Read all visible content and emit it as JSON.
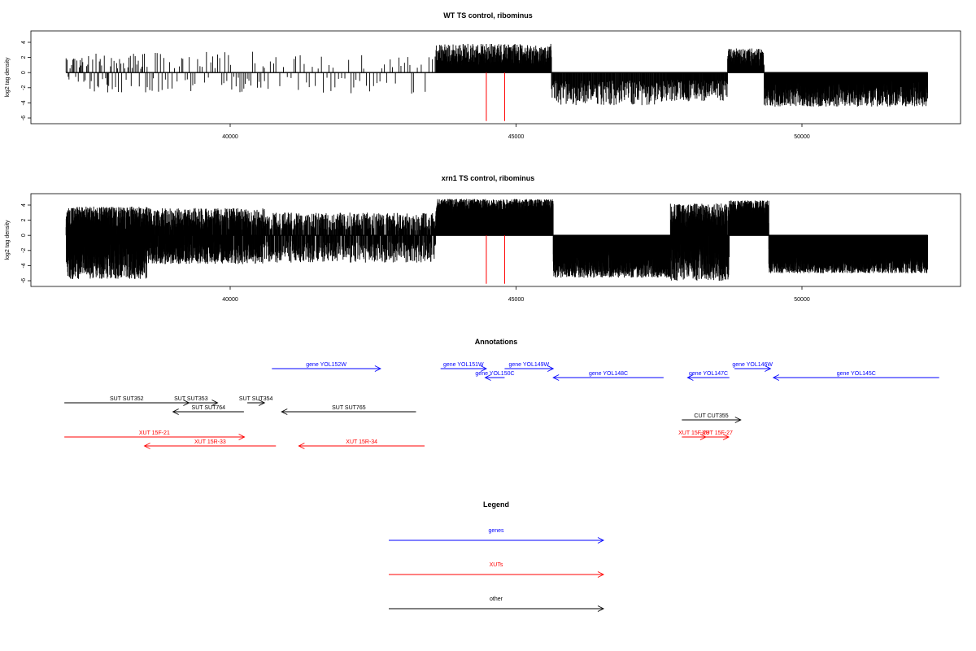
{
  "chart_data": [
    {
      "type": "bar",
      "title": "WT TS control, ribominus",
      "ylabel": "log2 tag density",
      "xlim": [
        37100,
        52400
      ],
      "ylim": [
        -6.8,
        5.5
      ],
      "xticks": [
        "40000",
        "45000",
        "50000"
      ],
      "yticks": [
        "4",
        "2",
        "0",
        "-2",
        "-4",
        "-6"
      ],
      "red_marks": [
        44480,
        44800
      ],
      "segments": [
        {
          "start": 37130,
          "end": 37530,
          "kind": "sparse",
          "pos": 2.2,
          "neg": -1.5,
          "density": 0.05
        },
        {
          "start": 37550,
          "end": 38550,
          "kind": "sparse",
          "pos": 2.5,
          "neg": -2.8,
          "density": 0.045
        },
        {
          "start": 38550,
          "end": 40600,
          "kind": "sparse",
          "pos": 2.8,
          "neg": -2.6,
          "density": 0.03
        },
        {
          "start": 40600,
          "end": 43600,
          "kind": "sparse",
          "pos": 2.3,
          "neg": -2.8,
          "density": 0.02
        },
        {
          "start": 43600,
          "end": 45620,
          "kind": "pos",
          "max": 3.8,
          "density": 0.25
        },
        {
          "start": 45620,
          "end": 47700,
          "kind": "neg",
          "max": -4.3,
          "density": 0.12
        },
        {
          "start": 47700,
          "end": 48700,
          "kind": "neg",
          "max": -3.8,
          "density": 0.15
        },
        {
          "start": 48700,
          "end": 49340,
          "kind": "pos",
          "max": 3.2,
          "density": 0.3
        },
        {
          "start": 49340,
          "end": 52200,
          "kind": "neg",
          "max": -4.5,
          "density": 0.35
        }
      ]
    },
    {
      "type": "bar",
      "title": "xrn1 TS control, ribominus",
      "ylabel": "log2 tag density",
      "xlim": [
        37100,
        52400
      ],
      "ylim": [
        -6.8,
        5.5
      ],
      "xticks": [
        "40000",
        "45000",
        "50000"
      ],
      "yticks": [
        "4",
        "2",
        "0",
        "-2",
        "-4",
        "-6"
      ],
      "red_marks": [
        44480,
        44800
      ],
      "segments": [
        {
          "start": 37130,
          "end": 38550,
          "kind": "mixed",
          "pos": 3.8,
          "neg": -5.8,
          "density": 0.9
        },
        {
          "start": 38550,
          "end": 40600,
          "kind": "mixed",
          "pos": 3.6,
          "neg": -3.8,
          "density": 0.6
        },
        {
          "start": 40600,
          "end": 43600,
          "kind": "mixed",
          "pos": 3.0,
          "neg": -3.6,
          "density": 0.35
        },
        {
          "start": 43600,
          "end": 45650,
          "kind": "pos",
          "max": 4.8,
          "density": 0.95
        },
        {
          "start": 45650,
          "end": 47700,
          "kind": "neg",
          "max": -5.6,
          "density": 0.65
        },
        {
          "start": 47700,
          "end": 48730,
          "kind": "mixed",
          "pos": 4.2,
          "neg": -6.0,
          "density": 0.75
        },
        {
          "start": 48730,
          "end": 49420,
          "kind": "pos",
          "max": 4.6,
          "density": 0.9
        },
        {
          "start": 49420,
          "end": 52200,
          "kind": "neg",
          "max": -5.0,
          "density": 0.85
        }
      ]
    }
  ],
  "annotations": {
    "title": "Annotations",
    "items": [
      {
        "label": "gene YOL152W",
        "start": 40730,
        "end": 42630,
        "dir": "right",
        "color": "#0000ff",
        "row": 0
      },
      {
        "label": "gene YOL151W",
        "start": 43680,
        "end": 44480,
        "dir": "right",
        "color": "#0000ff",
        "row": 0
      },
      {
        "label": "gene YOL150C",
        "start": 44460,
        "end": 44800,
        "dir": "left",
        "color": "#0000ff",
        "row": 1
      },
      {
        "label": "gene YOL149W",
        "start": 44800,
        "end": 45650,
        "dir": "right",
        "color": "#0000ff",
        "row": 0
      },
      {
        "label": "gene YOL148C",
        "start": 45650,
        "end": 47580,
        "dir": "left",
        "color": "#0000ff",
        "row": 1
      },
      {
        "label": "gene YOL147C",
        "start": 48000,
        "end": 48730,
        "dir": "left",
        "color": "#0000ff",
        "row": 1
      },
      {
        "label": "gene YOL146W",
        "start": 48820,
        "end": 49450,
        "dir": "right",
        "color": "#0000ff",
        "row": 0
      },
      {
        "label": "gene YOL145C",
        "start": 49500,
        "end": 52400,
        "dir": "left",
        "color": "#0000ff",
        "row": 1
      },
      {
        "label": "SUT SUT352",
        "start": 37100,
        "end": 39280,
        "dir": "right",
        "color": "#000000",
        "row": 3
      },
      {
        "label": "SUT SUT353",
        "start": 38850,
        "end": 39780,
        "dir": "right",
        "color": "#000000",
        "row": 3
      },
      {
        "label": "SUT SUT764",
        "start": 39000,
        "end": 40240,
        "dir": "left",
        "color": "#000000",
        "row": 4
      },
      {
        "label": "SUT SUT354",
        "start": 40300,
        "end": 40600,
        "dir": "right",
        "color": "#000000",
        "row": 3
      },
      {
        "label": "SUT SUT765",
        "start": 40900,
        "end": 43250,
        "dir": "left",
        "color": "#000000",
        "row": 4
      },
      {
        "label": "CUT CUT355",
        "start": 47900,
        "end": 48930,
        "dir": "right",
        "color": "#000000",
        "row": 5
      },
      {
        "label": "XUT 15F-21",
        "start": 37100,
        "end": 40250,
        "dir": "right",
        "color": "#ff0000",
        "row": 6
      },
      {
        "label": "XUT 15R-33",
        "start": 38500,
        "end": 40800,
        "dir": "left",
        "color": "#ff0000",
        "row": 7
      },
      {
        "label": "XUT 15R-34",
        "start": 41200,
        "end": 43400,
        "dir": "left",
        "color": "#ff0000",
        "row": 7
      },
      {
        "label": "XUT 15F-28",
        "start": 47900,
        "end": 48320,
        "dir": "right",
        "color": "#ff0000",
        "row": 6
      },
      {
        "label": "XUT 15F-27",
        "start": 48320,
        "end": 48720,
        "dir": "right",
        "color": "#ff0000",
        "row": 6
      }
    ]
  },
  "legend": {
    "title": "Legend",
    "items": [
      {
        "label": "genes",
        "color": "#0000ff"
      },
      {
        "label": "XUTs",
        "color": "#ff0000"
      },
      {
        "label": "other",
        "color": "#000000"
      }
    ]
  }
}
